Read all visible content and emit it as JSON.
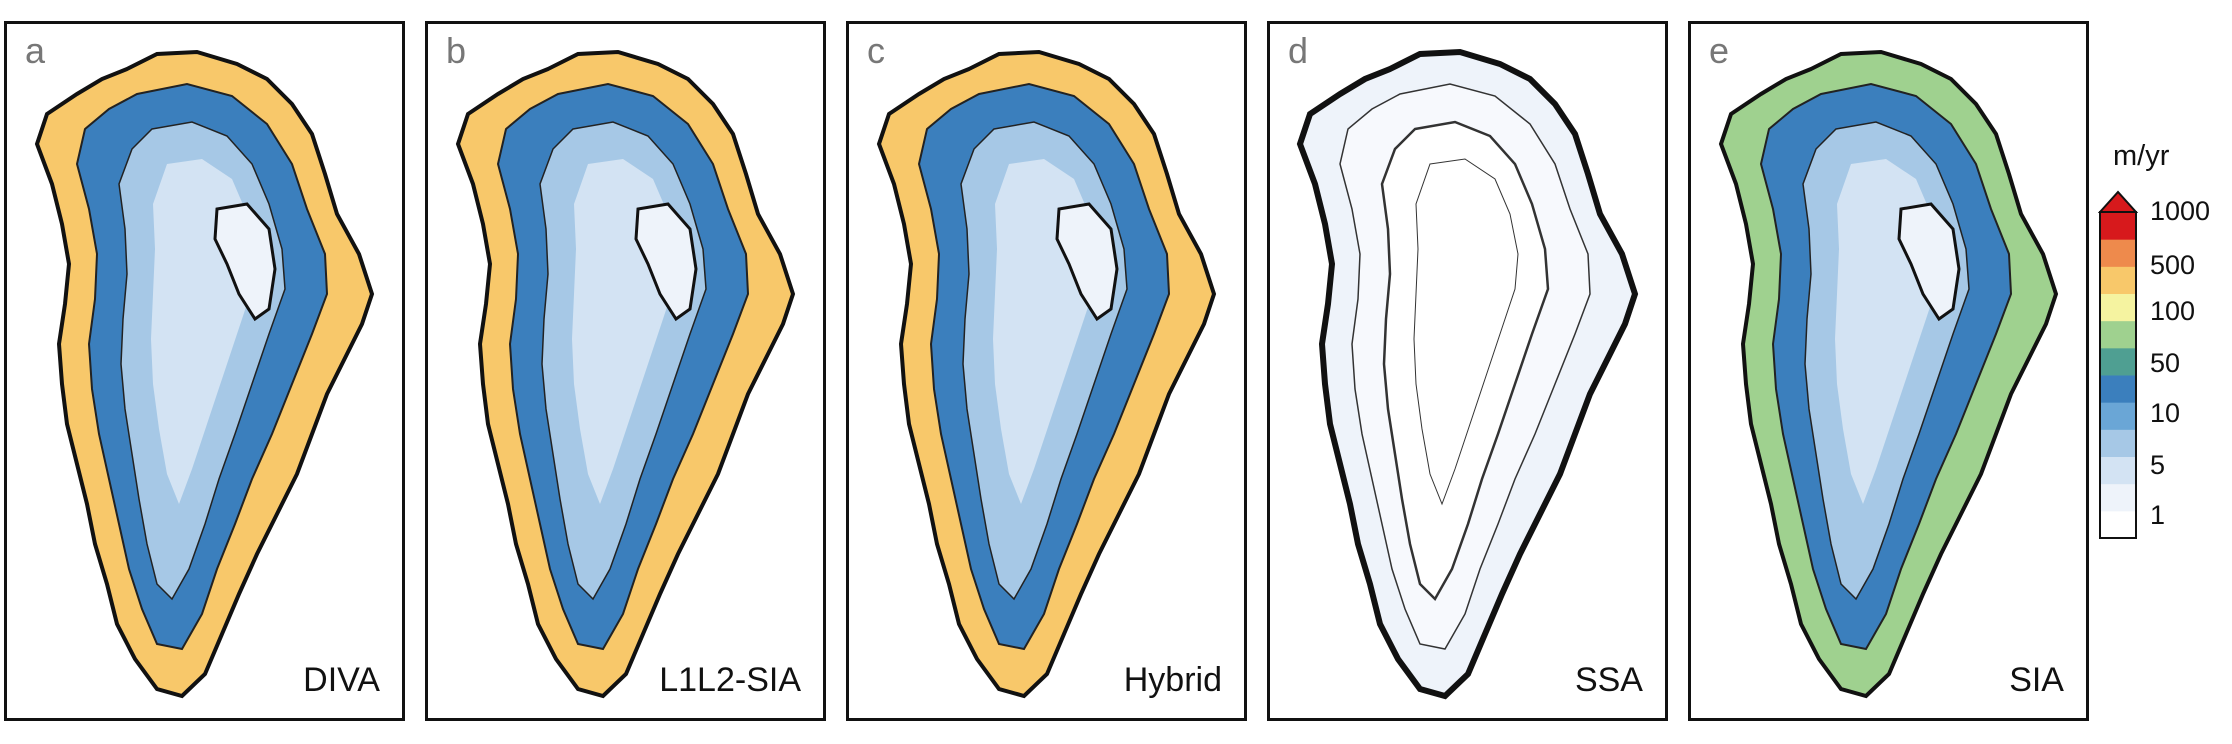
{
  "panels": [
    {
      "letter": "a",
      "model": "DIVA"
    },
    {
      "letter": "b",
      "model": "L1L2-SIA"
    },
    {
      "letter": "c",
      "model": "Hybrid"
    },
    {
      "letter": "d",
      "model": "SSA"
    },
    {
      "letter": "e",
      "model": "SIA"
    }
  ],
  "colorbar": {
    "unit": "m/yr",
    "ticks": [
      "1000",
      "500",
      "100",
      "50",
      "10",
      "5",
      "1"
    ],
    "colors": [
      "#ffffff",
      "#eef3fa",
      "#d3e3f3",
      "#a6c8e6",
      "#6aa6d6",
      "#3b7fbd",
      "#4f9f92",
      "#9fd18f",
      "#f5f3a0",
      "#f8c86a",
      "#ee8a4c",
      "#d7191c"
    ]
  }
}
